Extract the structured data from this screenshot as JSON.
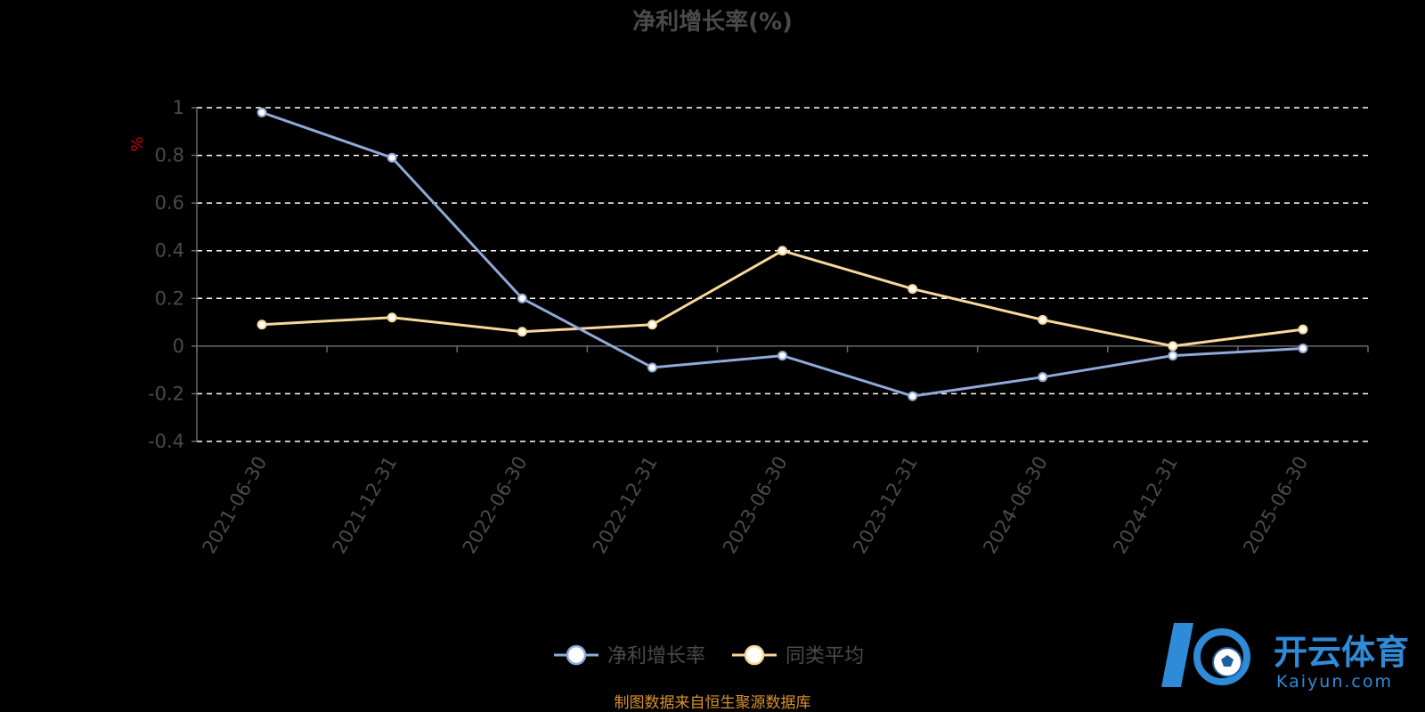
{
  "chart_data": {
    "type": "line",
    "title": "净利增长率(%)",
    "ylabel": "%",
    "xlabel": "",
    "categories": [
      "2021-06-30",
      "2021-12-31",
      "2022-06-30",
      "2022-12-31",
      "2023-06-30",
      "2023-12-31",
      "2024-06-30",
      "2024-12-31",
      "2025-06-30"
    ],
    "ylim": [
      -0.4,
      1
    ],
    "yticks": [
      -0.4,
      -0.2,
      0,
      0.2,
      0.4,
      0.6,
      0.8,
      1
    ],
    "ytick_labels": [
      "-0.4",
      "-0.2",
      "0",
      "0.2",
      "0.4",
      "0.6",
      "0.8",
      "1"
    ],
    "grid": true,
    "legend_position": "bottom-center",
    "series": [
      {
        "name": "净利增长率",
        "color": "#8fa9d8",
        "values": [
          0.98,
          0.79,
          0.2,
          -0.09,
          -0.04,
          -0.21,
          -0.13,
          -0.04,
          -0.01
        ]
      },
      {
        "name": "同类平均",
        "color": "#f7d89a",
        "values": [
          0.09,
          0.12,
          0.06,
          0.09,
          0.4,
          0.24,
          0.11,
          0.0,
          0.07
        ]
      }
    ]
  },
  "footer": {
    "source": "制图数据来自恒生聚源数据库"
  },
  "watermark": {
    "name_cn": "开云体育",
    "name_en": "Kaiyun.com"
  }
}
